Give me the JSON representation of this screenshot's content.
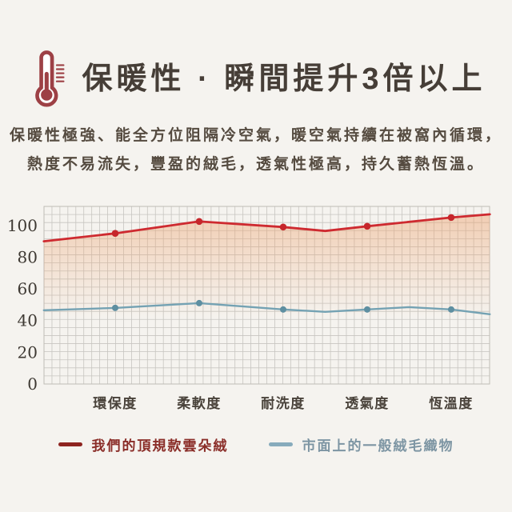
{
  "page": {
    "background_color": "#f5f3ef"
  },
  "header": {
    "icon": "thermometer-icon",
    "icon_color": "#9d4045",
    "title": "保暖性 · 瞬間提升3倍以上",
    "subtitle_line1": "保暖性極強、能全方位阻隔冷空氣，暖空氣持續在被窩內循環，",
    "subtitle_line2": "熱度不易流失，豐盈的絨毛，透氣性極高，持久蓄熱恆溫。"
  },
  "chart_data": {
    "type": "line",
    "title": "",
    "xlabel": "",
    "ylabel": "",
    "categories": [
      "環保度",
      "柔軟度",
      "耐洗度",
      "透氣度",
      "恆溫度"
    ],
    "y_ticks": [
      0,
      20,
      40,
      60,
      80,
      100
    ],
    "ylim": [
      0,
      112
    ],
    "grid": true,
    "grid_color": "#c7c5c0",
    "legend_position": "bottom",
    "series": [
      {
        "name": "我們的頂規款雲朵絨",
        "color": "#ce2a30",
        "marker_color": "#c6262b",
        "legend_color": "#8e2420",
        "fill_gradient": true,
        "fill_color": "#eda26e",
        "category_values": [
          95,
          102.5,
          99,
          99.5,
          105
        ],
        "points": [
          {
            "x": -0.85,
            "y": 90
          },
          {
            "x": 0,
            "y": 95
          },
          {
            "x": 1,
            "y": 102.5
          },
          {
            "x": 2,
            "y": 99
          },
          {
            "x": 2.5,
            "y": 96.5
          },
          {
            "x": 3,
            "y": 99.5
          },
          {
            "x": 4,
            "y": 105
          },
          {
            "x": 4.46,
            "y": 107
          }
        ],
        "marker_x": [
          0,
          1,
          2,
          3,
          4
        ]
      },
      {
        "name": "市面上的一般絨毛織物",
        "color": "#74a2b3",
        "marker_color": "#5e8fa1",
        "legend_color": "#87abbc",
        "fill_gradient": false,
        "category_values": [
          48,
          51,
          47,
          47,
          47
        ],
        "points": [
          {
            "x": -0.85,
            "y": 46.5
          },
          {
            "x": 0,
            "y": 48
          },
          {
            "x": 1,
            "y": 51
          },
          {
            "x": 2,
            "y": 47
          },
          {
            "x": 2.5,
            "y": 45.5
          },
          {
            "x": 3,
            "y": 47
          },
          {
            "x": 3.5,
            "y": 48.5
          },
          {
            "x": 4,
            "y": 47
          },
          {
            "x": 4.46,
            "y": 44
          }
        ],
        "marker_x": [
          0,
          1,
          2,
          3,
          4
        ]
      }
    ]
  }
}
